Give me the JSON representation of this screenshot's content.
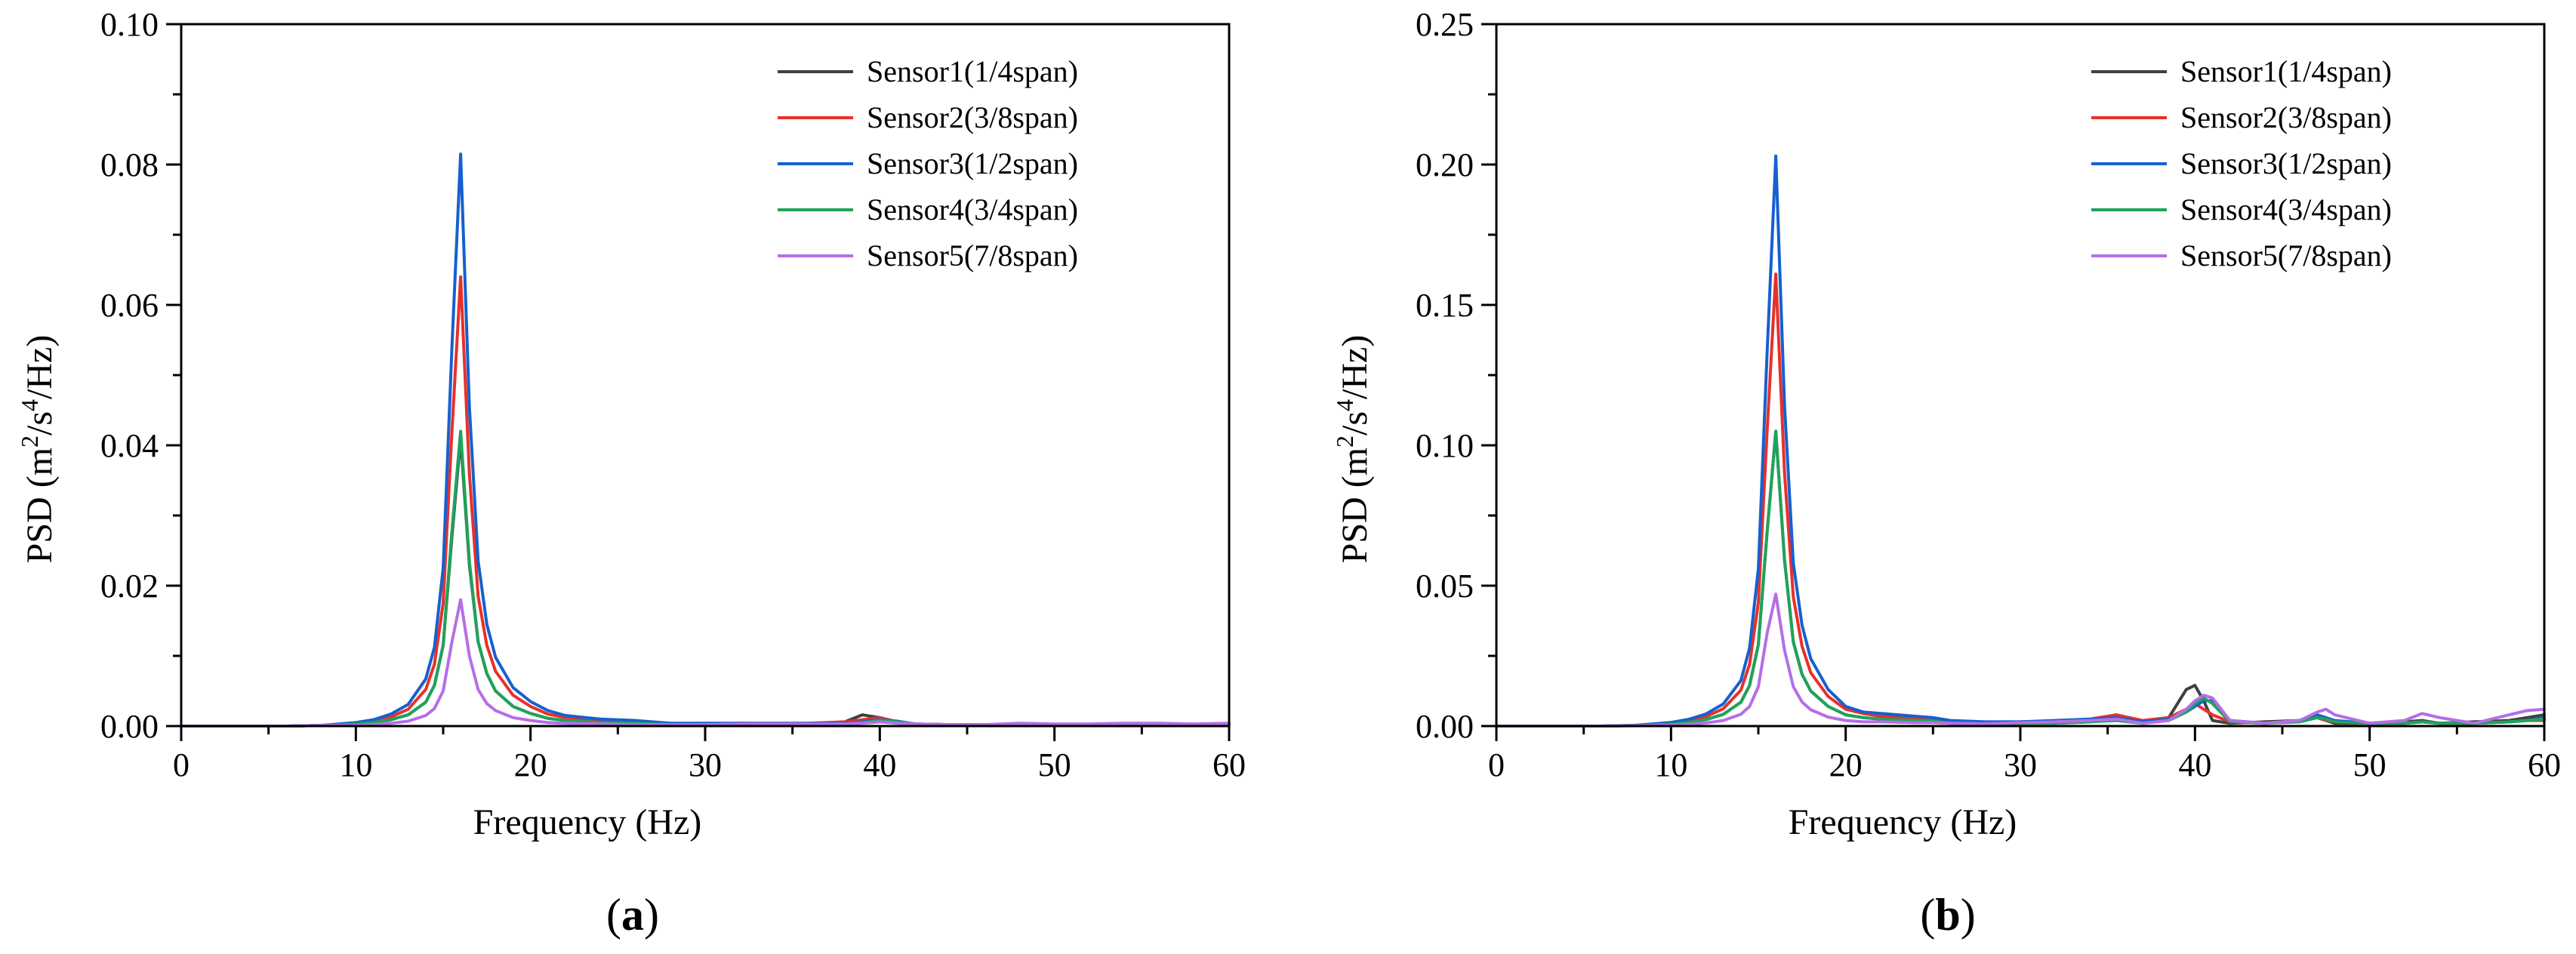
{
  "figure": {
    "panel_labels": [
      "(a)",
      "(b)"
    ]
  },
  "chart_data": [
    {
      "type": "line",
      "panel": "a",
      "xlabel": "Frequency (Hz)",
      "ylabel": "PSD (m2/s4/Hz)",
      "xlim": [
        0,
        60
      ],
      "ylim": [
        0,
        0.1
      ],
      "xticks": [
        0,
        10,
        20,
        30,
        40,
        50,
        60
      ],
      "yticks": [
        0.0,
        0.02,
        0.04,
        0.06,
        0.08,
        0.1
      ],
      "ytick_decimals": 2,
      "grid": false,
      "legend_position": "top-right",
      "x": [
        0,
        2,
        4,
        6,
        8,
        10,
        11,
        12,
        13,
        14,
        14.5,
        15,
        15.5,
        16,
        16.5,
        17,
        17.5,
        18,
        19,
        20,
        21,
        22,
        24,
        26,
        28,
        30,
        32,
        34,
        36,
        38,
        39,
        40,
        41,
        42,
        44,
        46,
        48,
        50,
        52,
        54,
        56,
        58,
        60
      ],
      "series": [
        {
          "name": "Sensor1(1/4span)",
          "color": "#404040",
          "values": [
            0,
            0,
            0,
            0,
            0.0001,
            0.0003,
            0.0005,
            0.0009,
            0.0016,
            0.0034,
            0.0058,
            0.0115,
            0.027,
            0.041,
            0.023,
            0.012,
            0.0075,
            0.005,
            0.0028,
            0.0018,
            0.0011,
            0.0008,
            0.0005,
            0.0004,
            0.0002,
            0.0002,
            0.0003,
            0.0002,
            0.0003,
            0.0006,
            0.0016,
            0.0012,
            0.0006,
            0.0003,
            0.0002,
            0.0002,
            0.0002,
            0.0002,
            0.0002,
            0.0002,
            0.0002,
            0.0002,
            0.0002
          ]
        },
        {
          "name": "Sensor2(3/8span)",
          "color": "#e8302a",
          "values": [
            0,
            0,
            0,
            0,
            0.0001,
            0.0004,
            0.0007,
            0.0013,
            0.0024,
            0.0052,
            0.0088,
            0.0175,
            0.042,
            0.064,
            0.036,
            0.0185,
            0.0115,
            0.0078,
            0.0044,
            0.0028,
            0.0017,
            0.0012,
            0.0008,
            0.0006,
            0.0003,
            0.0003,
            0.0004,
            0.0003,
            0.0004,
            0.0006,
            0.0009,
            0.0012,
            0.0006,
            0.0003,
            0.0002,
            0.0002,
            0.0002,
            0.0002,
            0.0002,
            0.0002,
            0.0002,
            0.0002,
            0.0002
          ]
        },
        {
          "name": "Sensor3(1/2span)",
          "color": "#1660d0",
          "values": [
            0,
            0,
            0,
            0,
            0.0001,
            0.0005,
            0.0009,
            0.0017,
            0.0031,
            0.0067,
            0.0112,
            0.0225,
            0.054,
            0.0815,
            0.0455,
            0.0235,
            0.0145,
            0.0098,
            0.0055,
            0.0035,
            0.0022,
            0.0015,
            0.001,
            0.0008,
            0.0004,
            0.0004,
            0.0004,
            0.0004,
            0.0004,
            0.0004,
            0.0006,
            0.0009,
            0.0007,
            0.0003,
            0.0002,
            0.0002,
            0.0002,
            0.0002,
            0.0002,
            0.0002,
            0.0002,
            0.0002,
            0.0003
          ]
        },
        {
          "name": "Sensor4(3/4span)",
          "color": "#1fa35a",
          "values": [
            0,
            0,
            0,
            0,
            0.0001,
            0.0003,
            0.0005,
            0.0009,
            0.0016,
            0.0034,
            0.0058,
            0.0115,
            0.0278,
            0.042,
            0.0235,
            0.012,
            0.0075,
            0.005,
            0.0028,
            0.0018,
            0.0011,
            0.0008,
            0.0005,
            0.0004,
            0.0002,
            0.0002,
            0.0002,
            0.0002,
            0.0002,
            0.0003,
            0.0005,
            0.0008,
            0.0006,
            0.0003,
            0.0002,
            0.0002,
            0.0002,
            0.0002,
            0.0002,
            0.0002,
            0.0002,
            0.0002,
            0.0002
          ]
        },
        {
          "name": "Sensor5(7/8span)",
          "color": "#b56ee6",
          "values": [
            0,
            0,
            0,
            0,
            0.0001,
            0.0001,
            0.0002,
            0.0004,
            0.0007,
            0.0015,
            0.0025,
            0.005,
            0.012,
            0.018,
            0.01,
            0.0052,
            0.0032,
            0.0022,
            0.0012,
            0.0008,
            0.0005,
            0.0004,
            0.0003,
            0.0002,
            0.0002,
            0.0002,
            0.0003,
            0.0003,
            0.0003,
            0.0003,
            0.0004,
            0.0006,
            0.0004,
            0.0003,
            0.0002,
            0.0002,
            0.0004,
            0.0003,
            0.0003,
            0.0004,
            0.0004,
            0.0003,
            0.0004
          ]
        }
      ]
    },
    {
      "type": "line",
      "panel": "b",
      "xlabel": "Frequency (Hz)",
      "ylabel": "PSD (m2/s4/Hz)",
      "xlim": [
        0,
        60
      ],
      "ylim": [
        0,
        0.25
      ],
      "xticks": [
        0,
        10,
        20,
        30,
        40,
        50,
        60
      ],
      "yticks": [
        0.0,
        0.05,
        0.1,
        0.15,
        0.2,
        0.25
      ],
      "ytick_decimals": 2,
      "grid": false,
      "legend_position": "top-right",
      "x": [
        0,
        2,
        4,
        6,
        8,
        10,
        11,
        12,
        13,
        14,
        14.5,
        15,
        15.5,
        16,
        16.5,
        17,
        17.5,
        18,
        19,
        20,
        21,
        22,
        24,
        25,
        26,
        28,
        30,
        32,
        34,
        35.5,
        37,
        38.5,
        39.5,
        40,
        40.5,
        41,
        42,
        44,
        46,
        47,
        47.5,
        48,
        50,
        52,
        53,
        54,
        56,
        58,
        59,
        60
      ],
      "series": [
        {
          "name": "Sensor1(1/4span)",
          "color": "#404040",
          "values": [
            0,
            0,
            0,
            0,
            0.0002,
            0.0007,
            0.0013,
            0.0023,
            0.0042,
            0.0085,
            0.0145,
            0.029,
            0.069,
            0.105,
            0.059,
            0.03,
            0.0185,
            0.0125,
            0.007,
            0.004,
            0.003,
            0.0025,
            0.002,
            0.002,
            0.001,
            0.0008,
            0.001,
            0.001,
            0.0015,
            0.003,
            0.0015,
            0.003,
            0.013,
            0.0145,
            0.009,
            0.002,
            0.001,
            0.0015,
            0.002,
            0.003,
            0.002,
            0.001,
            0.001,
            0.0015,
            0.002,
            0.001,
            0.0015,
            0.002,
            0.003,
            0.004
          ]
        },
        {
          "name": "Sensor2(3/8span)",
          "color": "#e8302a",
          "values": [
            0,
            0,
            0,
            0,
            0.0003,
            0.001,
            0.0019,
            0.0034,
            0.0062,
            0.0128,
            0.022,
            0.044,
            0.105,
            0.161,
            0.09,
            0.046,
            0.0285,
            0.019,
            0.0105,
            0.006,
            0.0045,
            0.0035,
            0.0028,
            0.0025,
            0.0018,
            0.001,
            0.0015,
            0.0018,
            0.0025,
            0.004,
            0.002,
            0.003,
            0.006,
            0.008,
            0.006,
            0.004,
            0.0015,
            0.001,
            0.002,
            0.003,
            0.002,
            0.0015,
            0.001,
            0.001,
            0.0015,
            0.001,
            0.001,
            0.0015,
            0.002,
            0.002
          ]
        },
        {
          "name": "Sensor3(1/2span)",
          "color": "#1660d0",
          "values": [
            0,
            0,
            0,
            0,
            0.0003,
            0.0013,
            0.0024,
            0.0043,
            0.0079,
            0.0162,
            0.0278,
            0.056,
            0.133,
            0.203,
            0.114,
            0.058,
            0.036,
            0.024,
            0.013,
            0.007,
            0.005,
            0.0045,
            0.0035,
            0.003,
            0.002,
            0.0015,
            0.0015,
            0.002,
            0.0025,
            0.003,
            0.0015,
            0.0025,
            0.005,
            0.007,
            0.009,
            0.009,
            0.002,
            0.001,
            0.002,
            0.004,
            0.003,
            0.002,
            0.001,
            0.001,
            0.0015,
            0.001,
            0.001,
            0.0015,
            0.002,
            0.003
          ]
        },
        {
          "name": "Sensor4(3/4span)",
          "color": "#1fa35a",
          "values": [
            0,
            0,
            0,
            0,
            0.0002,
            0.0007,
            0.0013,
            0.0023,
            0.0042,
            0.0085,
            0.0145,
            0.029,
            0.069,
            0.105,
            0.059,
            0.03,
            0.0185,
            0.0125,
            0.007,
            0.004,
            0.003,
            0.0025,
            0.002,
            0.0018,
            0.001,
            0.0008,
            0.001,
            0.001,
            0.0015,
            0.002,
            0.001,
            0.002,
            0.005,
            0.008,
            0.01,
            0.008,
            0.0015,
            0.001,
            0.0015,
            0.003,
            0.0025,
            0.0015,
            0.001,
            0.001,
            0.0015,
            0.001,
            0.001,
            0.0015,
            0.002,
            0.0025
          ]
        },
        {
          "name": "Sensor5(7/8span)",
          "color": "#b56ee6",
          "values": [
            0,
            0,
            0,
            0,
            0.0001,
            0.0003,
            0.0006,
            0.0011,
            0.002,
            0.0042,
            0.007,
            0.014,
            0.033,
            0.047,
            0.027,
            0.014,
            0.0086,
            0.0058,
            0.0032,
            0.002,
            0.0015,
            0.0015,
            0.0012,
            0.0012,
            0.001,
            0.0008,
            0.0012,
            0.0015,
            0.002,
            0.0025,
            0.001,
            0.002,
            0.006,
            0.009,
            0.011,
            0.01,
            0.002,
            0.001,
            0.002,
            0.005,
            0.006,
            0.004,
            0.001,
            0.002,
            0.0045,
            0.003,
            0.001,
            0.004,
            0.0055,
            0.006
          ]
        }
      ]
    }
  ]
}
